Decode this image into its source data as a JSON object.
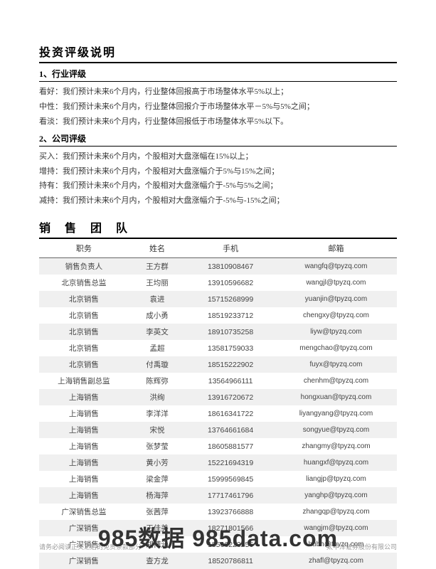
{
  "rating_section": {
    "title": "投资评级说明",
    "industry": {
      "heading": "1、行业评级",
      "items": [
        {
          "term": "看好：",
          "desc": "我们预计未来6个月内，行业整体回报高于市场整体水平5%以上；"
        },
        {
          "term": "中性：",
          "desc": "我们预计未来6个月内，行业整体回报介于市场整体水平－5%与5%之间；"
        },
        {
          "term": "看淡：",
          "desc": "我们预计未来6个月内，行业整体回报低于市场整体水平5%以下。"
        }
      ]
    },
    "company": {
      "heading": "2、公司评级",
      "items": [
        {
          "term": "买入：",
          "desc": "我们预计未来6个月内，个股相对大盘涨幅在15%以上；"
        },
        {
          "term": "增持：",
          "desc": "我们预计未来6个月内，个股相对大盘涨幅介于5%与15%之间；"
        },
        {
          "term": "持有：",
          "desc": "我们预计未来6个月内，个股相对大盘涨幅介于-5%与5%之间；"
        },
        {
          "term": "减持：",
          "desc": "我们预计未来6个月内，个股相对大盘涨幅介于-5%与-15%之间；"
        }
      ]
    }
  },
  "team_section": {
    "title": "销 售 团 队",
    "columns": [
      "职务",
      "姓名",
      "手机",
      "邮箱"
    ],
    "rows": [
      [
        "销售负责人",
        "王方群",
        "13810908467",
        "wangfq@tpyzq.com"
      ],
      [
        "北京销售总监",
        "王均丽",
        "13910596682",
        "wangjl@tpyzq.com"
      ],
      [
        "北京销售",
        "袁进",
        "15715268999",
        "yuanjin@tpyzq.com"
      ],
      [
        "北京销售",
        "成小勇",
        "18519233712",
        "chengxy@tpyzq.com"
      ],
      [
        "北京销售",
        "李英文",
        "18910735258",
        "liyw@tpyzq.com"
      ],
      [
        "北京销售",
        "孟超",
        "13581759033",
        "mengchao@tpyzq.com"
      ],
      [
        "北京销售",
        "付禹璇",
        "18515222902",
        "fuyx@tpyzq.com"
      ],
      [
        "上海销售副总监",
        "陈辉弥",
        "13564966111",
        "chenhm@tpyzq.com"
      ],
      [
        "上海销售",
        "洪绚",
        "13916720672",
        "hongxuan@tpyzq.com"
      ],
      [
        "上海销售",
        "李洋洋",
        "18616341722",
        "liyangyang@tpyzq.com"
      ],
      [
        "上海销售",
        "宋悦",
        "13764661684",
        "songyue@tpyzq.com"
      ],
      [
        "上海销售",
        "张梦莹",
        "18605881577",
        "zhangmy@tpyzq.com"
      ],
      [
        "上海销售",
        "黄小芳",
        "15221694319",
        "huangxf@tpyzq.com"
      ],
      [
        "上海销售",
        "梁金萍",
        "15999569845",
        "liangjp@tpyzq.com"
      ],
      [
        "上海销售",
        "杨海萍",
        "17717461796",
        "yanghp@tpyzq.com"
      ],
      [
        "广深销售总监",
        "张茜萍",
        "13923766888",
        "zhangqp@tpyzq.com"
      ],
      [
        "广深销售",
        "王佳美",
        "18271801566",
        "wangjm@tpyzq.com"
      ],
      [
        "广深销售",
        "胡博涵",
        "18566223256",
        "hubh@tpyzq.com"
      ],
      [
        "广深销售",
        "查方龙",
        "18520786811",
        "zhafl@tpyzq.com"
      ]
    ]
  },
  "footer": {
    "left": "请务必阅读正文之后的免责条款部分",
    "right": "太平洋证券股份有限公司"
  },
  "watermark": "985数据 985data.com"
}
